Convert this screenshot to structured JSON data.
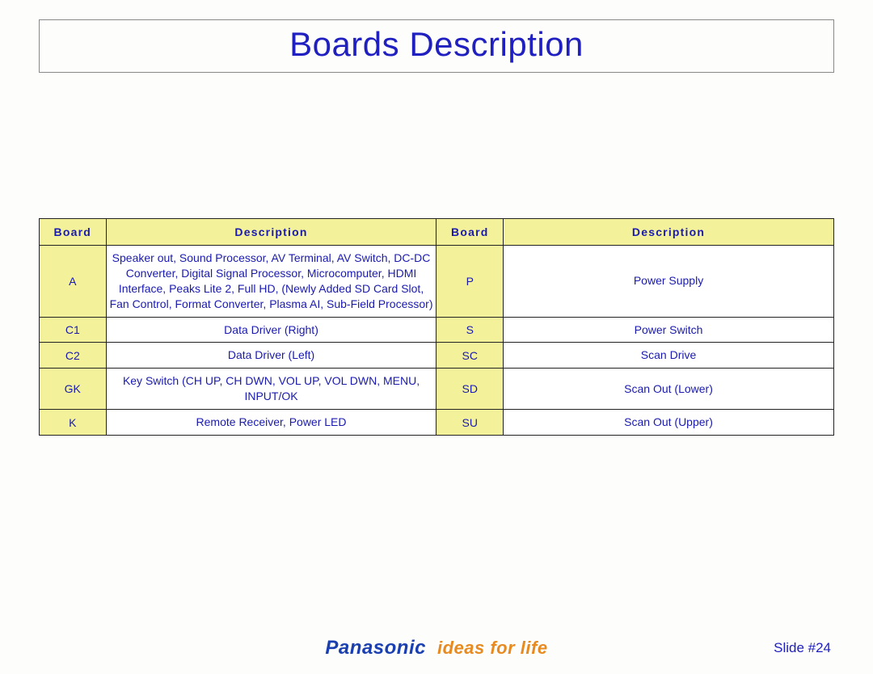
{
  "title": "Boards Description",
  "table": {
    "columns": [
      "Board",
      "Description",
      "Board",
      "Description"
    ],
    "header_bg": "#f3f29a",
    "header_color": "#1a1aaf",
    "board_cell_bg": "#f3f29a",
    "desc_cell_bg": "#ffffff",
    "cell_text_color": "#1a1aaf",
    "border_color": "#222222",
    "font_size_header": 14,
    "font_size_body": 13.5,
    "col_widths_pct": [
      8.4,
      41.6,
      8.4,
      41.6
    ],
    "rows": [
      {
        "left_board": "A",
        "left_desc": "Speaker out, Sound Processor, AV Terminal, AV Switch, DC-DC Converter, Digital Signal Processor, Microcomputer, HDMI Interface, Peaks Lite 2, Full HD, (Newly Added SD Card Slot, Fan Control, Format Converter, Plasma AI, Sub-Field Processor)",
        "right_board": "P",
        "right_desc": "Power Supply"
      },
      {
        "left_board": "C1",
        "left_desc": "Data Driver (Right)",
        "right_board": "S",
        "right_desc": "Power Switch"
      },
      {
        "left_board": "C2",
        "left_desc": "Data Driver (Left)",
        "right_board": "SC",
        "right_desc": "Scan Drive"
      },
      {
        "left_board": "GK",
        "left_desc": "Key Switch (CH UP, CH DWN, VOL UP, VOL DWN, MENU, INPUT/OK",
        "right_board": "SD",
        "right_desc": "Scan Out (Lower)"
      },
      {
        "left_board": "K",
        "left_desc": "Remote Receiver, Power LED",
        "right_board": "SU",
        "right_desc": "Scan Out (Upper)"
      }
    ]
  },
  "footer": {
    "brand": "Panasonic",
    "brand_color": "#1a3fb0",
    "tagline": "ideas for life",
    "tagline_color": "#e78a1f"
  },
  "slide_number": "Slide #24",
  "colors": {
    "title_color": "#2020c0",
    "background": "#fdfdfc"
  }
}
